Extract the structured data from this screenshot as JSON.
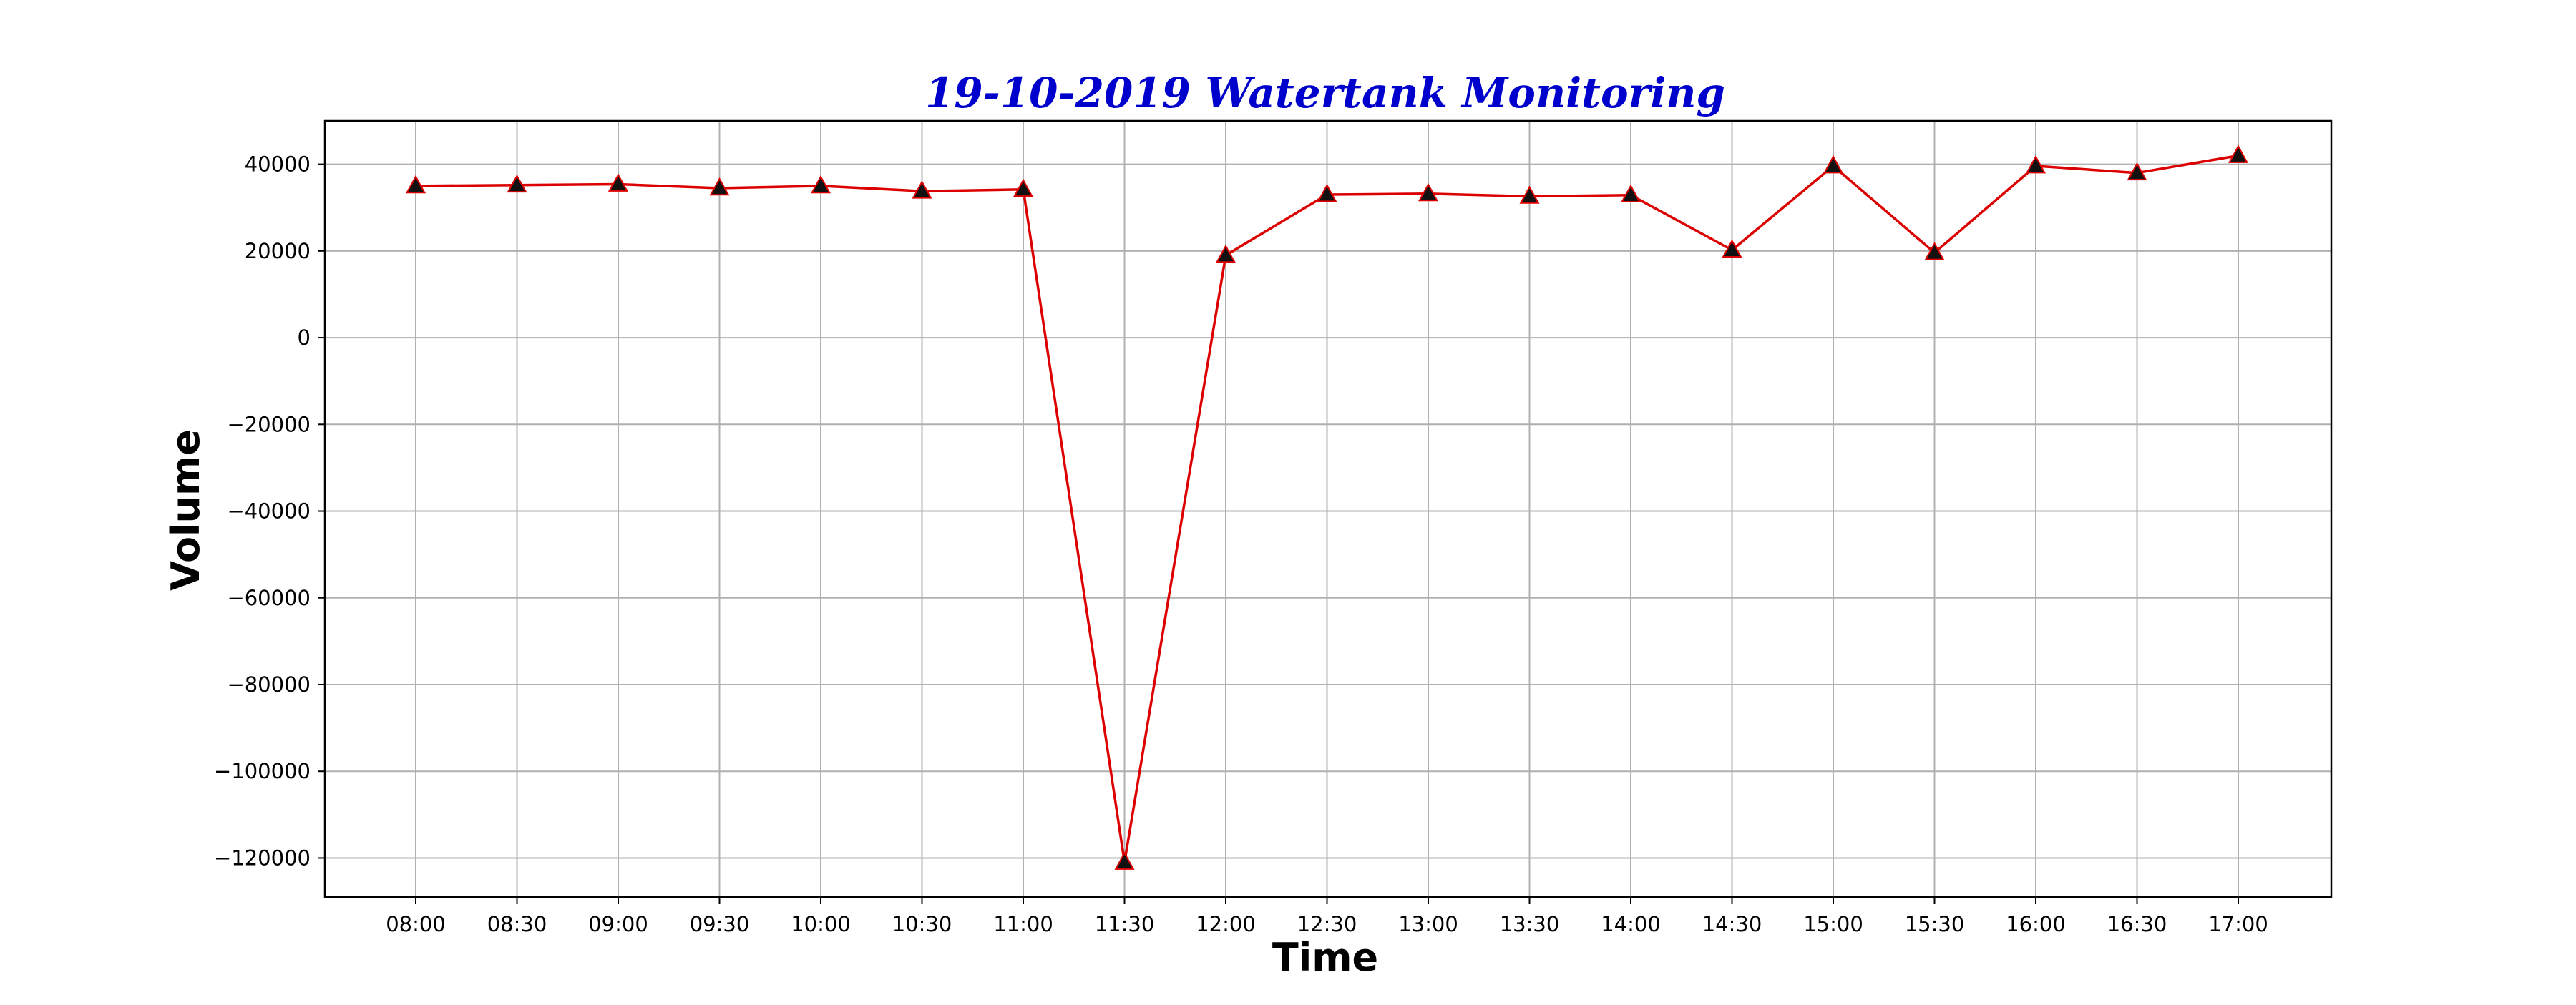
{
  "chart_data": {
    "type": "line",
    "title": "19-10-2019 Watertank Monitoring",
    "xlabel": "Time",
    "ylabel": "Volume",
    "categories": [
      "08:00",
      "08:30",
      "09:00",
      "09:30",
      "10:00",
      "10:30",
      "11:00",
      "11:30",
      "12:00",
      "12:30",
      "13:00",
      "13:30",
      "14:00",
      "14:30",
      "15:00",
      "15:30",
      "16:00",
      "16:30",
      "17:00"
    ],
    "series": [
      {
        "values": [
          35000,
          35200,
          35400,
          34500,
          35000,
          33800,
          34200,
          -121000,
          19000,
          33000,
          33200,
          32600,
          32900,
          20200,
          39600,
          19600,
          39600,
          38000,
          42000
        ]
      }
    ],
    "yticks": [
      40000,
      20000,
      0,
      -20000,
      -40000,
      -60000,
      -80000,
      -100000,
      -120000
    ],
    "ytick_labels": [
      "40000",
      "20000",
      "0",
      "−20000",
      "−40000",
      "−60000",
      "−80000",
      "−100000",
      "−120000"
    ],
    "ylim": [
      -129000,
      50000
    ],
    "grid": true,
    "legend": "none",
    "colors": {
      "title": "#0000cc",
      "line": "#dd0000",
      "marker_fill": "#111111",
      "marker_edge": "#dd0000",
      "grid": "#b0b0b0",
      "frame": "#000000"
    },
    "marker": "triangle-up"
  }
}
